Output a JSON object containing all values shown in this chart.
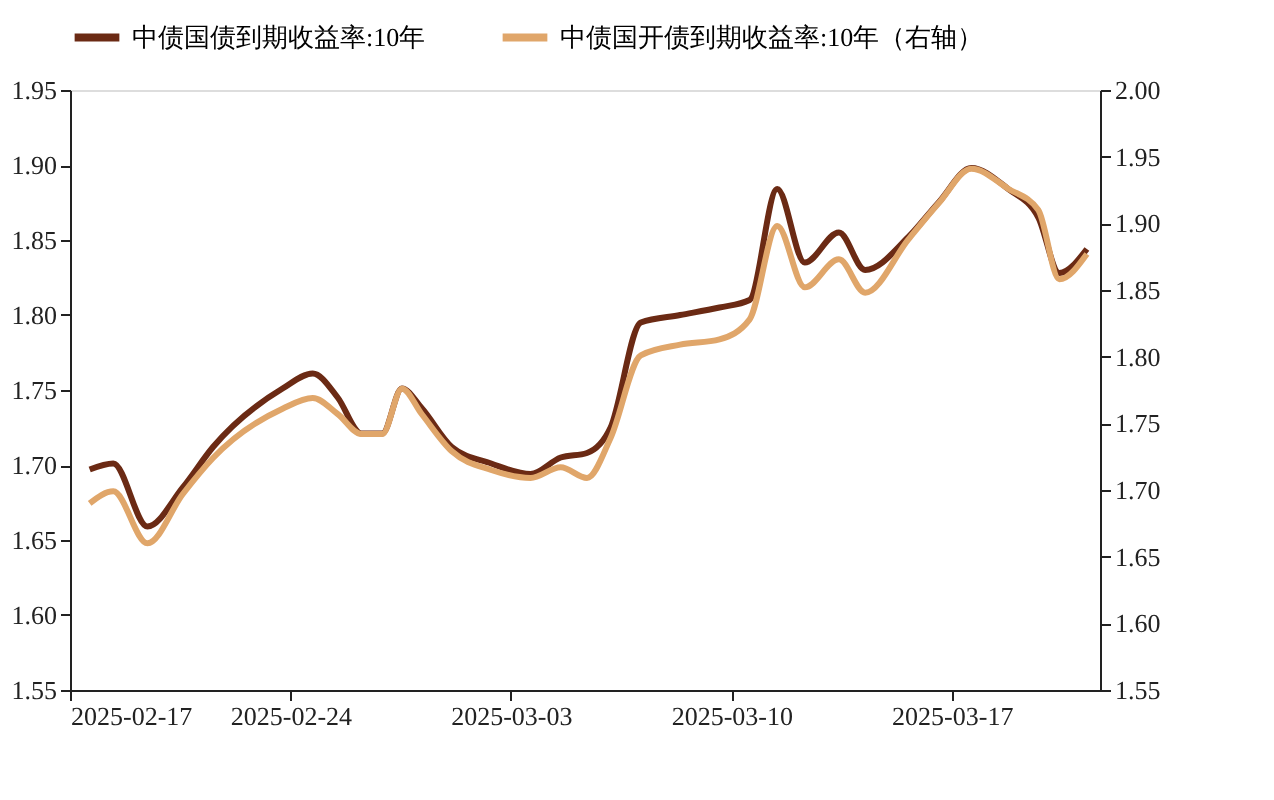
{
  "chart_data": {
    "type": "line",
    "x": [
      "2025-02-17T15:00",
      "2025-02-18T09:00",
      "2025-02-19T11:00",
      "2025-02-20T14:00",
      "2025-02-21T13:00",
      "2025-02-23T18:00",
      "2025-02-24T17:00",
      "2025-02-25T12:00",
      "2025-02-26T06:00",
      "2025-02-26T22:00",
      "2025-02-27T13:00",
      "2025-02-28T04:00",
      "2025-03-01T03:00",
      "2025-03-02T09:00",
      "2025-03-03T15:00",
      "2025-03-04T14:00",
      "2025-03-05T10:00",
      "2025-03-06T04:00",
      "2025-03-07T03:00",
      "2025-03-08T09:00",
      "2025-03-09T15:00",
      "2025-03-10T14:00",
      "2025-03-11T11:00",
      "2025-03-12T08:00",
      "2025-03-13T10:00",
      "2025-03-14T06:00",
      "2025-03-15T15:00",
      "2025-03-16T14:00",
      "2025-03-17T15:00",
      "2025-03-18T19:00",
      "2025-03-19T18:00",
      "2025-03-20T10:00",
      "2025-03-21T07:00"
    ],
    "series": [
      {
        "name": "中债国债到期收益率:10年",
        "color": "#6b2a14",
        "values": [
          1.697,
          1.701,
          1.659,
          1.685,
          1.712,
          1.751,
          1.761,
          1.745,
          1.721,
          1.721,
          1.751,
          1.738,
          1.712,
          1.701,
          1.694,
          1.705,
          1.708,
          1.725,
          1.795,
          1.8,
          1.805,
          1.81,
          1.884,
          1.835,
          1.855,
          1.83,
          1.852,
          1.875,
          1.898,
          1.884,
          1.865,
          1.828,
          1.844
        ]
      },
      {
        "name": "中债国开债到期收益率:10年（右轴）",
        "color": "#e0a66a",
        "axis": "y2",
        "values": [
          1.69,
          1.699,
          1.66,
          1.697,
          1.724,
          1.761,
          1.769,
          1.757,
          1.742,
          1.742,
          1.776,
          1.757,
          1.729,
          1.715,
          1.709,
          1.717,
          1.709,
          1.739,
          1.801,
          1.809,
          1.813,
          1.828,
          1.898,
          1.852,
          1.873,
          1.848,
          1.888,
          1.915,
          1.941,
          1.926,
          1.91,
          1.858,
          1.877
        ]
      }
    ],
    "xlim": [
      "2025-02-17",
      "2025-03-21T17:00"
    ],
    "xticks": [
      "2025-02-17",
      "2025-02-24",
      "2025-03-03",
      "2025-03-10",
      "2025-03-17"
    ],
    "ylim": [
      1.55,
      1.95
    ],
    "yticks": [
      {
        "value": 1.55,
        "label": "1.55"
      },
      {
        "value": 1.6,
        "label": "1.60"
      },
      {
        "value": 1.65,
        "label": "1.65"
      },
      {
        "value": 1.7,
        "label": "1.70"
      },
      {
        "value": 1.75,
        "label": "1.75"
      },
      {
        "value": 1.8,
        "label": "1.80"
      },
      {
        "value": 1.85,
        "label": "1.85"
      },
      {
        "value": 1.9,
        "label": "1.90"
      },
      {
        "value": 1.95,
        "label": "1.95"
      }
    ],
    "y2lim": [
      1.55,
      2.0
    ],
    "y2ticks": [
      {
        "value": 1.55,
        "label": "1.55"
      },
      {
        "value": 1.6,
        "label": "1.60"
      },
      {
        "value": 1.65,
        "label": "1.65"
      },
      {
        "value": 1.7,
        "label": "1.70"
      },
      {
        "value": 1.75,
        "label": "1.75"
      },
      {
        "value": 1.8,
        "label": "1.80"
      },
      {
        "value": 1.85,
        "label": "1.85"
      },
      {
        "value": 1.9,
        "label": "1.90"
      },
      {
        "value": 1.95,
        "label": "1.95"
      },
      {
        "value": 2.0,
        "label": "2.00"
      }
    ],
    "grid": false,
    "legend": "top",
    "marker": "none",
    "line_style": "solid"
  }
}
